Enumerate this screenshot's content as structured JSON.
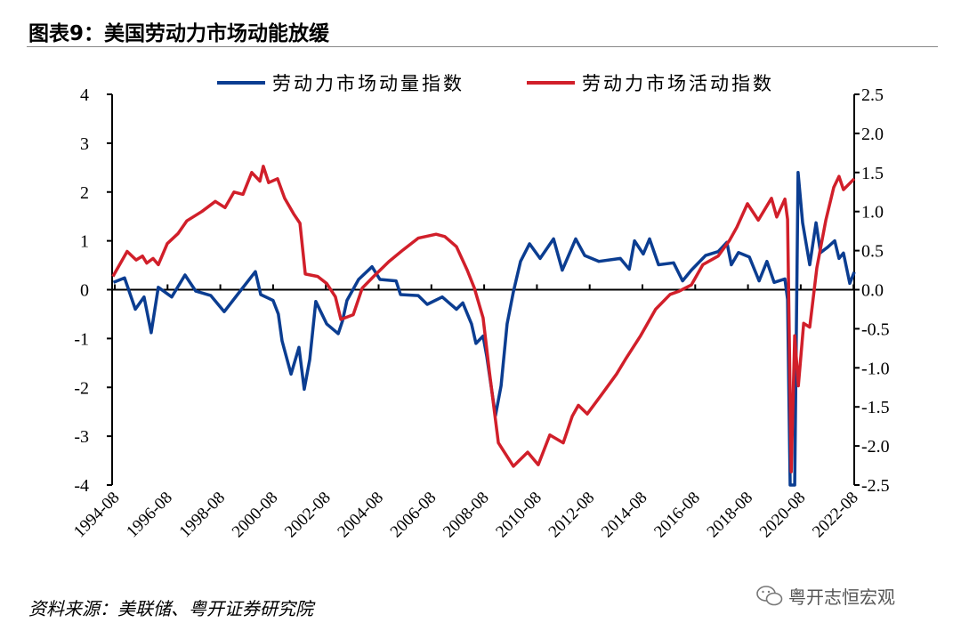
{
  "title": "图表9：美国劳动力市场动能放缓",
  "source": "资料来源：美联储、粤开证券研究院",
  "watermark": "粤开志恒宏观",
  "chart_data": {
    "type": "line",
    "title": "图表9：美国劳动力市场动能放缓",
    "xlabel": "",
    "ylabel": "",
    "ylim_left": [
      -4,
      4
    ],
    "ylim_right": [
      -2.5,
      2.5
    ],
    "xlim": [
      1994.6,
      2022.7
    ],
    "left_ticks": [
      "4",
      "3",
      "2",
      "1",
      "0",
      "-1",
      "-2",
      "-3",
      "-4"
    ],
    "right_ticks": [
      "2.5",
      "2.0",
      "1.5",
      "1.0",
      "0.5",
      "0.0",
      "-0.5",
      "-1.0",
      "-1.5",
      "-2.0",
      "-2.5"
    ],
    "x_ticks": [
      "1994-08",
      "1996-08",
      "1998-08",
      "2000-08",
      "2002-08",
      "2004-08",
      "2006-08",
      "2008-08",
      "2010-08",
      "2012-08",
      "2014-08",
      "2016-08",
      "2018-08",
      "2020-08",
      "2022-08"
    ],
    "legend_position": "top",
    "grid": false,
    "series": [
      {
        "name": "劳动力市场动量指数",
        "axis": "left",
        "color": "#0b3d91",
        "x": [
          1994.55,
          1994.97,
          1995.38,
          1995.71,
          1995.98,
          1996.25,
          1996.76,
          1997.26,
          1997.67,
          1998.24,
          1998.75,
          1999.25,
          1999.93,
          2000.13,
          2000.6,
          2000.8,
          2000.94,
          2001.28,
          2001.58,
          2001.78,
          2001.99,
          2002.22,
          2002.63,
          2003.07,
          2003.23,
          2003.4,
          2003.84,
          2004.35,
          2004.65,
          2005.26,
          2005.43,
          2006.1,
          2006.44,
          2007.01,
          2007.55,
          2007.79,
          2008.12,
          2008.29,
          2008.56,
          2008.7,
          2009.03,
          2009.24,
          2009.47,
          2009.71,
          2009.98,
          2010.32,
          2010.72,
          2011.23,
          2011.56,
          2012.07,
          2012.41,
          2012.95,
          2013.76,
          2014.1,
          2014.3,
          2014.63,
          2014.87,
          2015.21,
          2015.78,
          2016.12,
          2016.45,
          2016.99,
          2017.47,
          2017.8,
          2017.97,
          2018.24,
          2018.65,
          2019.02,
          2019.32,
          2019.59,
          2020.0,
          2020.1,
          2020.2,
          2020.37,
          2020.5,
          2020.67,
          2020.94,
          2021.18,
          2021.35,
          2021.62,
          2021.89,
          2022.05,
          2022.22,
          2022.46,
          2022.63
        ],
        "y": [
          0.15,
          0.24,
          -0.4,
          -0.15,
          -0.88,
          0.05,
          -0.15,
          0.3,
          -0.03,
          -0.12,
          -0.45,
          -0.1,
          0.37,
          -0.1,
          -0.22,
          -0.5,
          -1.05,
          -1.73,
          -1.18,
          -2.04,
          -1.43,
          -0.24,
          -0.7,
          -0.9,
          -0.64,
          -0.22,
          0.21,
          0.47,
          0.21,
          0.18,
          -0.1,
          -0.12,
          -0.3,
          -0.15,
          -0.4,
          -0.27,
          -0.7,
          -1.1,
          -0.95,
          -1.37,
          -2.58,
          -1.97,
          -0.7,
          -0.04,
          0.58,
          0.94,
          0.64,
          1.04,
          0.4,
          1.04,
          0.7,
          0.58,
          0.64,
          0.42,
          1.0,
          0.73,
          1.04,
          0.51,
          0.55,
          0.18,
          0.4,
          0.7,
          0.78,
          0.97,
          0.51,
          0.76,
          0.67,
          0.18,
          0.58,
          0.15,
          0.22,
          -0.2,
          -4.0,
          -4.0,
          2.4,
          1.37,
          0.51,
          1.37,
          0.76,
          0.87,
          1.0,
          0.64,
          0.75,
          0.13,
          0.36
        ]
      },
      {
        "name": "劳动力市场活动指数",
        "axis": "right",
        "color": "#d11f2a",
        "x": [
          1994.53,
          1995.07,
          1995.41,
          1995.65,
          1995.81,
          1996.05,
          1996.25,
          1996.59,
          1997.0,
          1997.33,
          1997.9,
          1998.41,
          1998.78,
          1999.12,
          1999.46,
          1999.79,
          2000.1,
          2000.23,
          2000.43,
          2000.77,
          2001.04,
          2001.38,
          2001.62,
          2001.82,
          2002.29,
          2002.63,
          2002.96,
          2003.17,
          2003.64,
          2003.98,
          2004.41,
          2004.99,
          2005.53,
          2006.1,
          2006.78,
          2007.11,
          2007.55,
          2007.96,
          2008.23,
          2008.56,
          2008.8,
          2009.14,
          2009.71,
          2010.25,
          2010.65,
          2011.09,
          2011.6,
          2011.94,
          2012.17,
          2012.51,
          2013.08,
          2013.62,
          2013.96,
          2014.53,
          2015.1,
          2015.65,
          2015.98,
          2016.45,
          2016.89,
          2017.47,
          2017.9,
          2018.18,
          2018.58,
          2018.99,
          2019.49,
          2019.69,
          2020.0,
          2020.1,
          2020.24,
          2020.37,
          2020.51,
          2020.71,
          2020.94,
          2021.21,
          2021.55,
          2021.85,
          2022.05,
          2022.22,
          2022.63
        ],
        "y": [
          0.17,
          0.49,
          0.38,
          0.43,
          0.34,
          0.4,
          0.32,
          0.59,
          0.72,
          0.88,
          1.0,
          1.13,
          1.05,
          1.25,
          1.22,
          1.5,
          1.39,
          1.58,
          1.37,
          1.42,
          1.17,
          0.97,
          0.85,
          0.2,
          0.17,
          0.08,
          -0.09,
          -0.38,
          -0.32,
          0.02,
          0.17,
          0.36,
          0.51,
          0.66,
          0.71,
          0.68,
          0.55,
          0.25,
          0.02,
          -0.36,
          -1.05,
          -1.96,
          -2.26,
          -2.08,
          -2.24,
          -1.86,
          -1.96,
          -1.62,
          -1.48,
          -1.59,
          -1.33,
          -1.08,
          -0.89,
          -0.59,
          -0.25,
          -0.06,
          -0.02,
          0.06,
          0.32,
          0.43,
          0.63,
          0.8,
          1.1,
          0.89,
          1.17,
          0.93,
          1.16,
          0.9,
          -2.33,
          -0.59,
          -1.23,
          -0.43,
          -0.48,
          0.28,
          0.89,
          1.31,
          1.45,
          1.28,
          1.42
        ]
      }
    ]
  }
}
